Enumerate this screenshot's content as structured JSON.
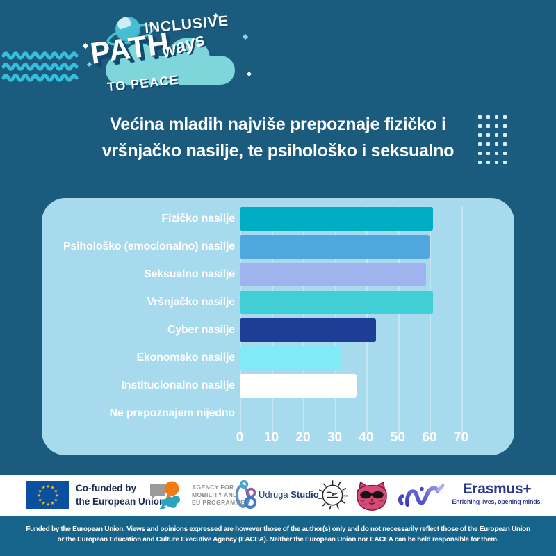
{
  "header": {
    "brand": {
      "inclusive": "INCLUSIVE",
      "path": "PATH",
      "ways": "ways",
      "to_peace": "TO PEACE"
    },
    "title_line1": "Većina mladih najviše prepoznaje fizičko i",
    "title_line2": "vršnjačko nasilje, te psihološko i seksualno"
  },
  "chart_data": {
    "type": "bar",
    "orientation": "horizontal",
    "title": "Većina mladih najviše prepoznaje fizičko i vršnjačko nasilje, te psihološko i seksualno",
    "categories": [
      "Fizičko nasilje",
      "Psihološko (emocionalno) nasilje",
      "Seksualno nasilje",
      "Vršnjačko nasilje",
      "Cyber nasilje",
      "Ekonomsko nasilje",
      "Institucionalno nasilje",
      "Ne prepoznajem nijedno"
    ],
    "values": [
      61,
      60,
      59,
      61,
      43,
      32,
      37,
      0
    ],
    "bar_colors": [
      "#00aec4",
      "#4fa7de",
      "#9fb3ee",
      "#40cfd4",
      "#1e3d94",
      "#82eaf6",
      "#ffffff",
      "none"
    ],
    "x_ticks": [
      0,
      10,
      20,
      30,
      40,
      50,
      60,
      70
    ],
    "xlim": [
      0,
      70
    ],
    "grid": true,
    "legend": false,
    "panel_color": "#a6daec",
    "label_color": "#ffffff"
  },
  "footer": {
    "eu": {
      "line1": "Co-funded by",
      "line2": "the European Union"
    },
    "agency": {
      "line1": "AGENCY FOR",
      "line2": "MOBILITY AND",
      "line3": "EU PROGRAMMES"
    },
    "studio_b": {
      "prefix": "Udruga",
      "name": "Studio B"
    },
    "erasmus": {
      "name": "Erasmus+",
      "tagline": "Enriching lives, opening minds."
    }
  },
  "disclaimer": {
    "line1": "Funded by the European Union. Views and opinions expressed are however those of the author(s) only and do not necessarily reflect those of the European Union",
    "line2": "or the European Education and Culture Executive Agency (EACEA). Neither the European Union nor EACEA can be held responsible for them."
  },
  "colors": {
    "background": "#1a5b7e",
    "wave": "#35bfdc",
    "disclaimer_bg": "#17648b"
  }
}
